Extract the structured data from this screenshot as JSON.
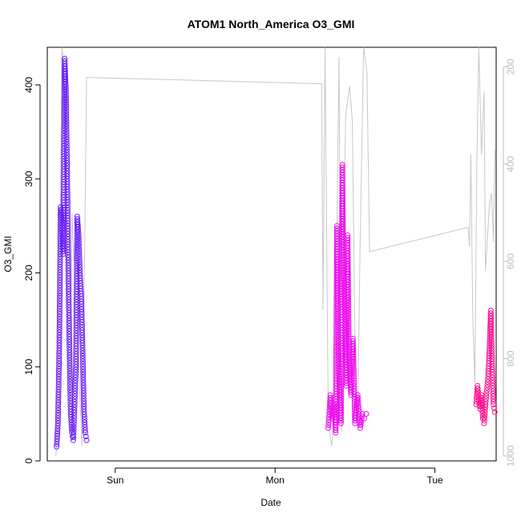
{
  "chart_data": {
    "type": "scatter",
    "title": "ATOM1 North_America O3_GMI",
    "xlabel": "Date",
    "ylabel": "O3_GMI",
    "x_tick_labels": [
      "Sun",
      "Mon",
      "Tue"
    ],
    "x_ticks_at_hours": [
      24,
      48,
      72
    ],
    "xlim_hours": [
      13.8,
      81.2
    ],
    "ylim": [
      0,
      440
    ],
    "y_ticks": [
      0,
      100,
      200,
      300,
      400
    ],
    "y2_ticks": [
      200,
      400,
      600,
      800,
      1000
    ],
    "y2lim_inverted": [
      1010,
      160
    ],
    "grid": false,
    "legend": "none",
    "colors": {
      "series1": "#6a1ff5",
      "series2": "#ee11ee",
      "series3": "#ff1494",
      "secondary_line": "#c8c8c8",
      "axis": "#000000",
      "right_axis": "#bdbdbd"
    },
    "series": [
      {
        "x_hours": [
          15.2,
          15.4,
          15.6,
          15.8,
          16.0,
          16.2,
          16.4,
          16.6,
          16.8,
          17.0,
          17.2,
          17.3,
          17.5,
          17.7,
          17.9,
          18.1,
          18.3,
          18.5,
          18.7,
          18.9,
          19.1,
          19.3,
          19.5,
          19.7
        ],
        "values": [
          15,
          40,
          120,
          270,
          255,
          220,
          428,
          395,
          300,
          180,
          90,
          55,
          30,
          22,
          60,
          100,
          260,
          240,
          200,
          175,
          120,
          55,
          30,
          22
        ]
      },
      {
        "x_hours": [
          56.0,
          56.3,
          56.6,
          56.9,
          57.1,
          57.3,
          57.5,
          57.7,
          57.9,
          58.1,
          58.3,
          58.5,
          58.7,
          58.9,
          59.1,
          59.4,
          59.7,
          60.0,
          60.4,
          60.8,
          61.1,
          61.4,
          61.7
        ],
        "values": [
          35,
          70,
          45,
          60,
          30,
          250,
          120,
          70,
          40,
          315,
          200,
          150,
          80,
          240,
          110,
          70,
          130,
          40,
          70,
          35,
          50,
          45,
          50
        ]
      },
      {
        "x_hours": [
          78.2,
          78.4,
          78.6,
          78.8,
          79.0,
          79.2,
          79.4,
          79.6,
          79.8,
          80.0,
          80.2,
          80.4,
          80.6,
          80.8,
          81.0
        ],
        "values": [
          60,
          80,
          65,
          55,
          70,
          45,
          40,
          60,
          75,
          90,
          120,
          160,
          100,
          60,
          52
        ]
      }
    ],
    "secondary_line_pressure": {
      "x_hours": [
        15.1,
        15.5,
        16.0,
        16.3,
        16.6,
        16.9,
        17.2,
        17.5,
        17.8,
        18.1,
        18.4,
        18.7,
        19.0,
        19.4,
        19.7,
        55.0,
        55.2,
        55.5,
        56.0,
        56.5,
        57.0,
        57.6,
        58.0,
        58.6,
        59.2,
        59.6,
        60.0,
        60.4,
        60.8,
        61.3,
        61.8,
        62.2,
        77.0,
        77.2,
        77.4,
        77.7,
        78.0,
        78.3,
        78.6,
        79.0,
        79.4,
        79.6,
        80.2,
        80.5,
        80.8,
        81.0
      ],
      "values": [
        1000,
        900,
        160,
        200,
        300,
        700,
        900,
        500,
        600,
        560,
        740,
        880,
        980,
        600,
        222,
        235,
        700,
        160,
        930,
        980,
        900,
        180,
        950,
        300,
        240,
        310,
        760,
        930,
        540,
        160,
        210,
        580,
        530,
        570,
        380,
        720,
        850,
        400,
        160,
        380,
        250,
        620,
        480,
        460,
        560,
        370
      ]
    }
  }
}
